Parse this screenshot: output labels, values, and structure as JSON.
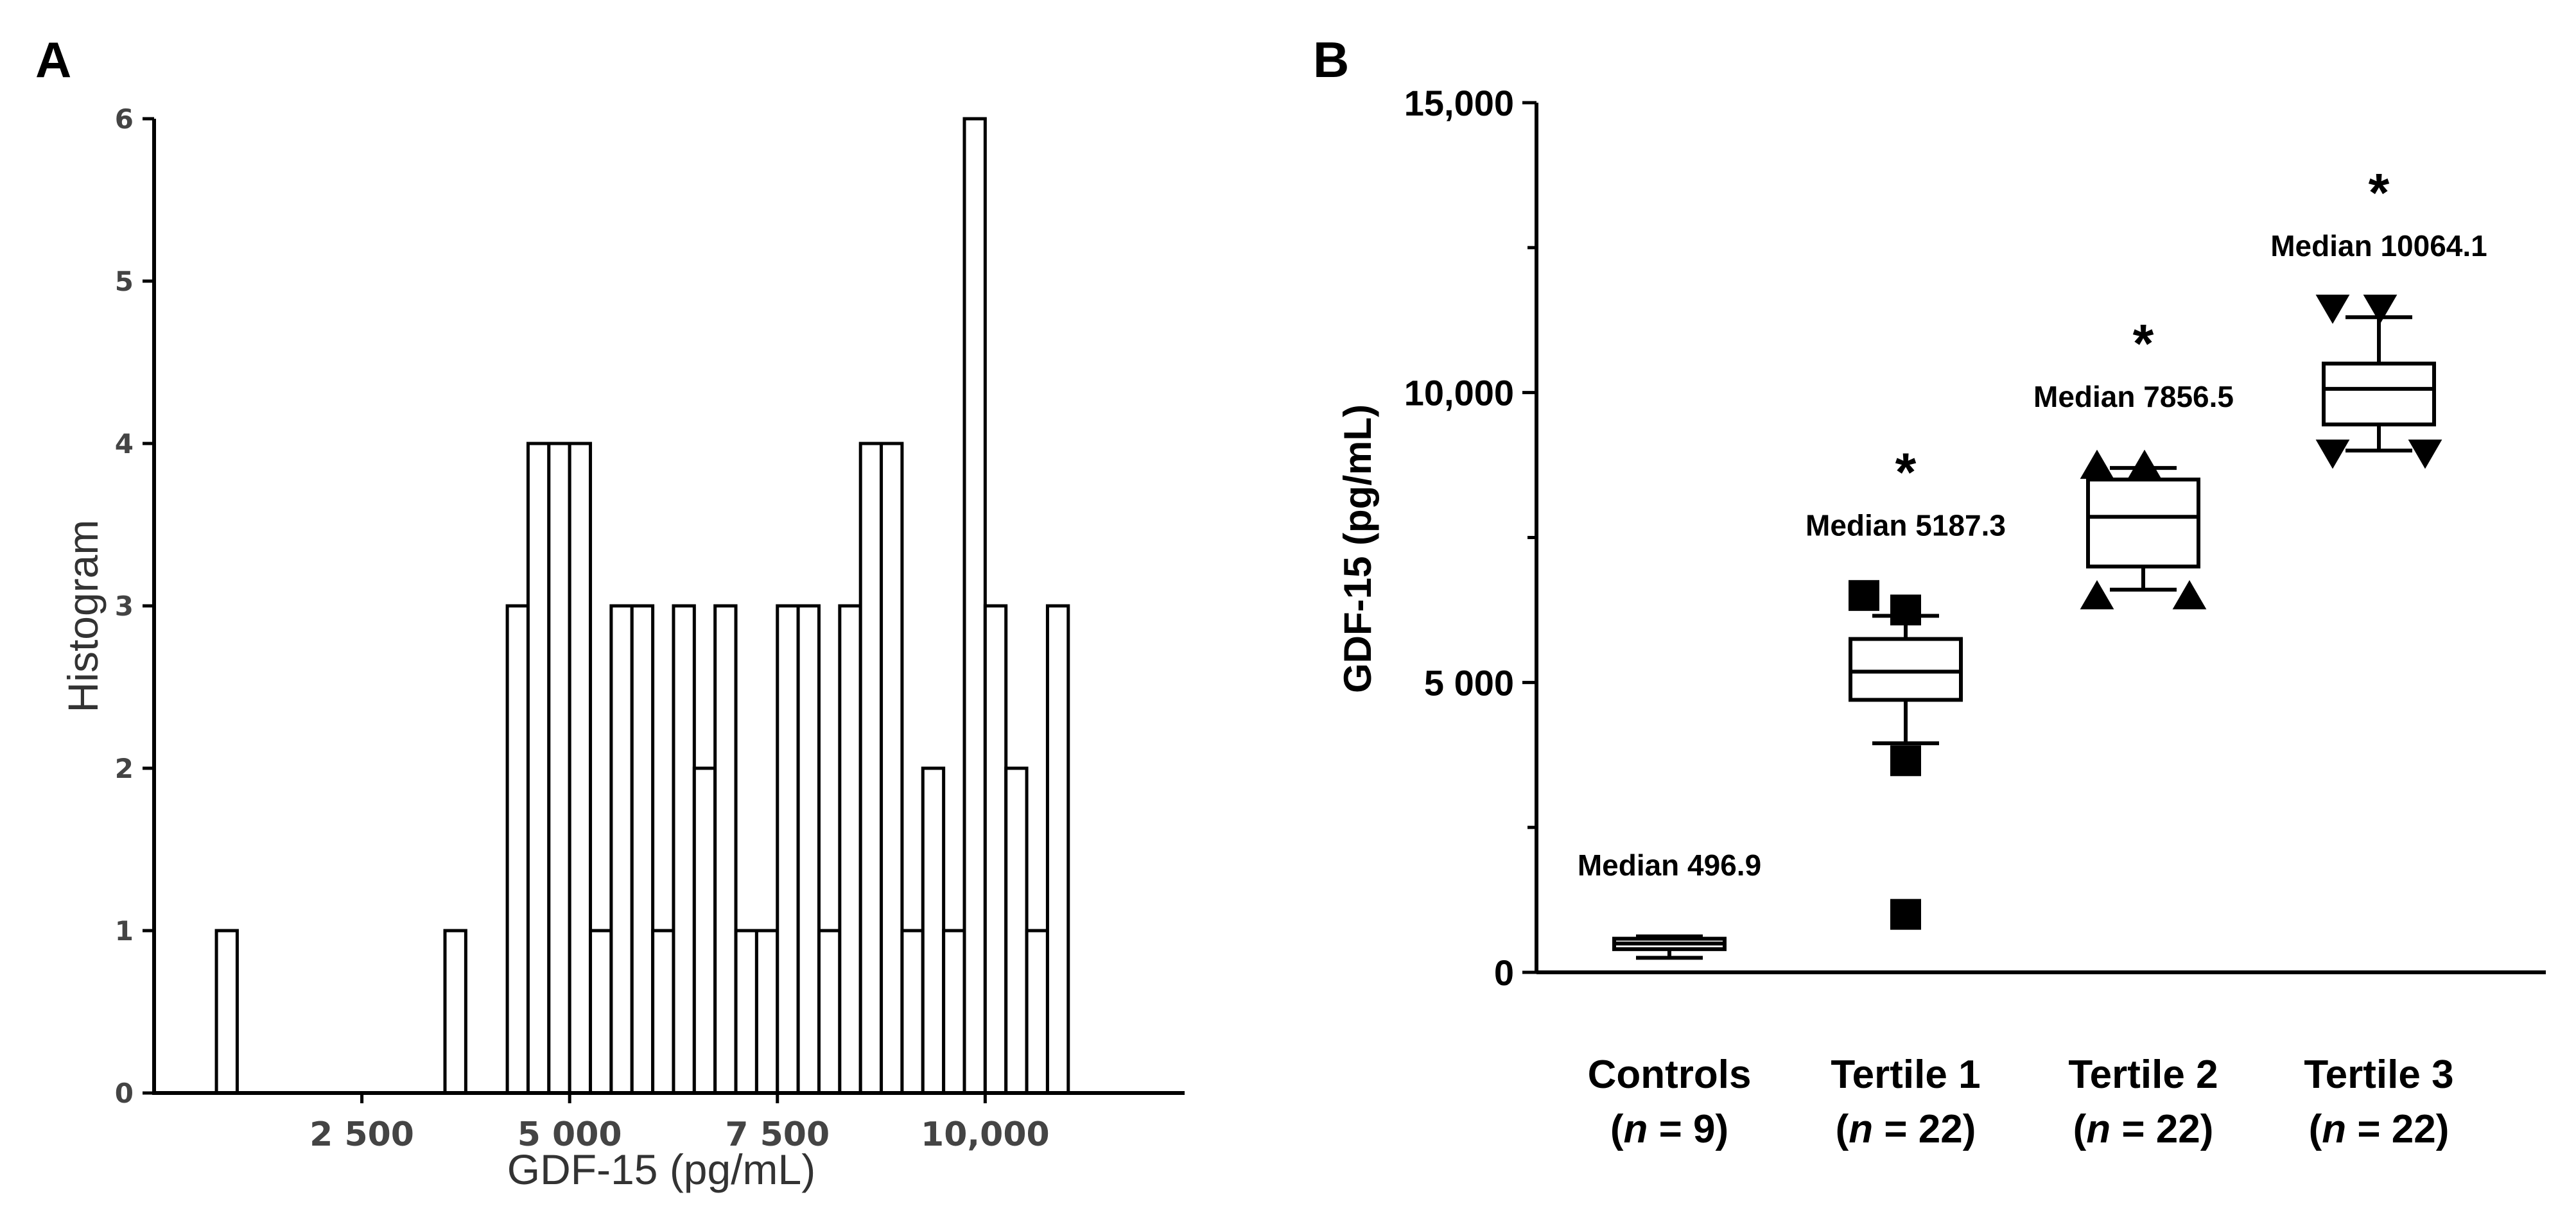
{
  "panels": {
    "a_label": "A",
    "b_label": "B"
  },
  "chart_data": [
    {
      "type": "bar",
      "panel": "A",
      "title": "",
      "xlabel": "GDF-15 (pg/mL)",
      "ylabel": "Histogram",
      "xlim": [
        0,
        12400
      ],
      "ylim": [
        0,
        6
      ],
      "x_tick_values": [
        2500,
        5000,
        7500,
        10000
      ],
      "x_tick_labels": [
        "2 500",
        "5 000",
        "7 500",
        "10,000"
      ],
      "y_ticks": [
        0,
        1,
        2,
        3,
        4,
        5,
        6
      ],
      "bin_width": 250,
      "bins": [
        {
          "start": 750,
          "count": 1
        },
        {
          "start": 3500,
          "count": 1
        },
        {
          "start": 4250,
          "count": 3
        },
        {
          "start": 4500,
          "count": 4
        },
        {
          "start": 4750,
          "count": 4
        },
        {
          "start": 5000,
          "count": 4
        },
        {
          "start": 5250,
          "count": 1
        },
        {
          "start": 5500,
          "count": 3
        },
        {
          "start": 5750,
          "count": 3
        },
        {
          "start": 6000,
          "count": 1
        },
        {
          "start": 6250,
          "count": 3
        },
        {
          "start": 6500,
          "count": 2
        },
        {
          "start": 6750,
          "count": 3
        },
        {
          "start": 7000,
          "count": 1
        },
        {
          "start": 7250,
          "count": 1
        },
        {
          "start": 7500,
          "count": 3
        },
        {
          "start": 7750,
          "count": 3
        },
        {
          "start": 8000,
          "count": 1
        },
        {
          "start": 8250,
          "count": 3
        },
        {
          "start": 8500,
          "count": 4
        },
        {
          "start": 8750,
          "count": 4
        },
        {
          "start": 9000,
          "count": 1
        },
        {
          "start": 9250,
          "count": 2
        },
        {
          "start": 9500,
          "count": 1
        },
        {
          "start": 9750,
          "count": 6
        },
        {
          "start": 10000,
          "count": 3
        },
        {
          "start": 10250,
          "count": 2
        },
        {
          "start": 10500,
          "count": 1
        },
        {
          "start": 10750,
          "count": 3
        }
      ]
    },
    {
      "type": "box",
      "panel": "B",
      "title": "",
      "ylabel": "GDF-15 (pg/mL)",
      "ylim": [
        0,
        15000
      ],
      "y_tick_values": [
        0,
        5000,
        10000,
        15000
      ],
      "y_tick_labels": [
        "0",
        "5 000",
        "10,000",
        "15,000"
      ],
      "groups": [
        {
          "name": "Controls",
          "n_prefix": "(",
          "n_symbol": "n",
          "n_suffix": " = 9)",
          "median_label": "Median 496.9",
          "star": "",
          "marker": "none",
          "whisker_low": 250,
          "q1": 400,
          "median": 497,
          "q3": 580,
          "whisker_high": 620,
          "outliers": []
        },
        {
          "name": "Tertile 1",
          "n_prefix": "(",
          "n_symbol": "n",
          "n_suffix": " = 22)",
          "median_label": "Median 5187.3",
          "star": "*",
          "marker": "square",
          "whisker_low": 3950,
          "q1": 4700,
          "median": 5187,
          "q3": 5750,
          "whisker_high": 6150,
          "outliers": [
            6500,
            6250,
            3650,
            1000
          ]
        },
        {
          "name": "Tertile 2",
          "n_prefix": "(",
          "n_symbol": "n",
          "n_suffix": " = 22)",
          "median_label": "Median 7856.5",
          "star": "*",
          "marker": "triangle-up",
          "whisker_low": 6600,
          "q1": 7000,
          "median": 7857,
          "q3": 8500,
          "whisker_high": 8700,
          "outliers": [
            8750,
            8750,
            6500,
            6500
          ]
        },
        {
          "name": "Tertile 3",
          "n_prefix": "(",
          "n_symbol": "n",
          "n_suffix": " = 22)",
          "median_label": "Median 10064.1",
          "star": "*",
          "marker": "triangle-down",
          "whisker_low": 9000,
          "q1": 9450,
          "median": 10064,
          "q3": 10500,
          "whisker_high": 11300,
          "outliers": [
            11450,
            11450,
            8950,
            8950
          ]
        }
      ]
    }
  ]
}
